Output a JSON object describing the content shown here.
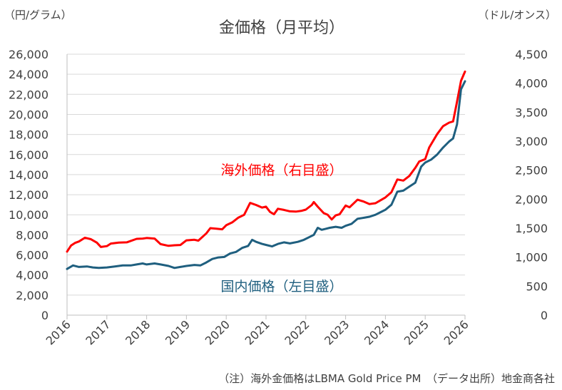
{
  "chart_data": {
    "type": "line",
    "title": "金価格（月平均）",
    "left_axis_unit": "（円/グラム）",
    "right_axis_unit": "（ドル/オンス）",
    "left_ticks": [
      "0",
      "2,000",
      "4,000",
      "6,000",
      "8,000",
      "10,000",
      "12,000",
      "14,000",
      "16,000",
      "18,000",
      "20,000",
      "22,000",
      "24,000",
      "26,000"
    ],
    "right_ticks": [
      "0",
      "500",
      "1,000",
      "1,500",
      "2,000",
      "2,500",
      "3,000",
      "3,500",
      "4,000",
      "4,500"
    ],
    "x_ticks": [
      "2016",
      "2017",
      "2018",
      "2019",
      "2020",
      "2021",
      "2022",
      "2023",
      "2024",
      "2025",
      "2026"
    ],
    "ylim_left": [
      0,
      26000
    ],
    "ylim_right": [
      0,
      4500
    ],
    "xlim": [
      2016,
      2026
    ],
    "note": "（注）海外金価格はLBMA Gold Price PM　（データ出所）地金商各社",
    "series": [
      {
        "name": "海外価格（右目盛）",
        "axis": "right",
        "color": "#ff0000",
        "x": [
          2016.0,
          2016.1,
          2016.2,
          2016.3,
          2016.45,
          2016.6,
          2016.75,
          2016.85,
          2017.0,
          2017.1,
          2017.3,
          2017.5,
          2017.6,
          2017.75,
          2017.9,
          2018.0,
          2018.2,
          2018.35,
          2018.55,
          2018.7,
          2018.85,
          2019.0,
          2019.2,
          2019.3,
          2019.5,
          2019.6,
          2019.75,
          2019.9,
          2020.0,
          2020.15,
          2020.3,
          2020.45,
          2020.6,
          2020.75,
          2020.9,
          2021.0,
          2021.1,
          2021.2,
          2021.3,
          2021.45,
          2021.6,
          2021.75,
          2021.9,
          2022.0,
          2022.15,
          2022.2,
          2022.3,
          2022.45,
          2022.55,
          2022.65,
          2022.75,
          2022.85,
          2023.0,
          2023.1,
          2023.3,
          2023.45,
          2023.6,
          2023.75,
          2023.85,
          2024.0,
          2024.15,
          2024.3,
          2024.45,
          2024.6,
          2024.75,
          2024.85,
          2025.0,
          2025.1,
          2025.3,
          2025.45,
          2025.6,
          2025.7,
          2025.8,
          2025.9,
          2026.0
        ],
        "values": [
          1095,
          1200,
          1245,
          1270,
          1335,
          1310,
          1250,
          1175,
          1190,
          1235,
          1250,
          1255,
          1280,
          1315,
          1320,
          1330,
          1320,
          1225,
          1195,
          1205,
          1210,
          1290,
          1300,
          1285,
          1410,
          1500,
          1490,
          1480,
          1550,
          1600,
          1680,
          1730,
          1935,
          1900,
          1855,
          1870,
          1780,
          1740,
          1835,
          1815,
          1790,
          1785,
          1800,
          1820,
          1900,
          1950,
          1870,
          1760,
          1730,
          1650,
          1720,
          1740,
          1890,
          1860,
          1990,
          1960,
          1915,
          1930,
          1970,
          2030,
          2120,
          2340,
          2320,
          2400,
          2540,
          2650,
          2690,
          2890,
          3120,
          3260,
          3320,
          3340,
          3680,
          4040,
          4200
        ]
      },
      {
        "name": "国内価格（左目盛）",
        "axis": "left",
        "color": "#1f5f7f",
        "x": [
          2016.0,
          2016.15,
          2016.3,
          2016.5,
          2016.65,
          2016.8,
          2017.0,
          2017.2,
          2017.4,
          2017.6,
          2017.75,
          2017.9,
          2018.0,
          2018.2,
          2018.35,
          2018.55,
          2018.7,
          2018.85,
          2019.0,
          2019.2,
          2019.35,
          2019.5,
          2019.65,
          2019.8,
          2019.95,
          2020.1,
          2020.25,
          2020.4,
          2020.55,
          2020.65,
          2020.75,
          2020.9,
          2021.0,
          2021.15,
          2021.3,
          2021.45,
          2021.6,
          2021.8,
          2021.95,
          2022.1,
          2022.2,
          2022.3,
          2022.4,
          2022.5,
          2022.6,
          2022.75,
          2022.9,
          2023.0,
          2023.15,
          2023.3,
          2023.45,
          2023.6,
          2023.75,
          2023.9,
          2024.0,
          2024.15,
          2024.3,
          2024.45,
          2024.6,
          2024.75,
          2024.9,
          2025.0,
          2025.15,
          2025.3,
          2025.45,
          2025.6,
          2025.7,
          2025.8,
          2025.9,
          2026.0
        ],
        "values": [
          4600,
          4950,
          4800,
          4850,
          4750,
          4700,
          4750,
          4850,
          4950,
          4950,
          5050,
          5150,
          5050,
          5150,
          5050,
          4900,
          4700,
          4800,
          4900,
          5000,
          4950,
          5250,
          5600,
          5750,
          5800,
          6150,
          6300,
          6700,
          6900,
          7500,
          7300,
          7100,
          7000,
          6850,
          7100,
          7250,
          7150,
          7300,
          7500,
          7800,
          8000,
          8700,
          8500,
          8600,
          8700,
          8800,
          8700,
          8900,
          9100,
          9600,
          9700,
          9800,
          10000,
          10300,
          10500,
          11000,
          12300,
          12400,
          12800,
          13200,
          14800,
          15200,
          15500,
          16000,
          16700,
          17300,
          17600,
          19000,
          22500,
          23300
        ]
      }
    ]
  }
}
